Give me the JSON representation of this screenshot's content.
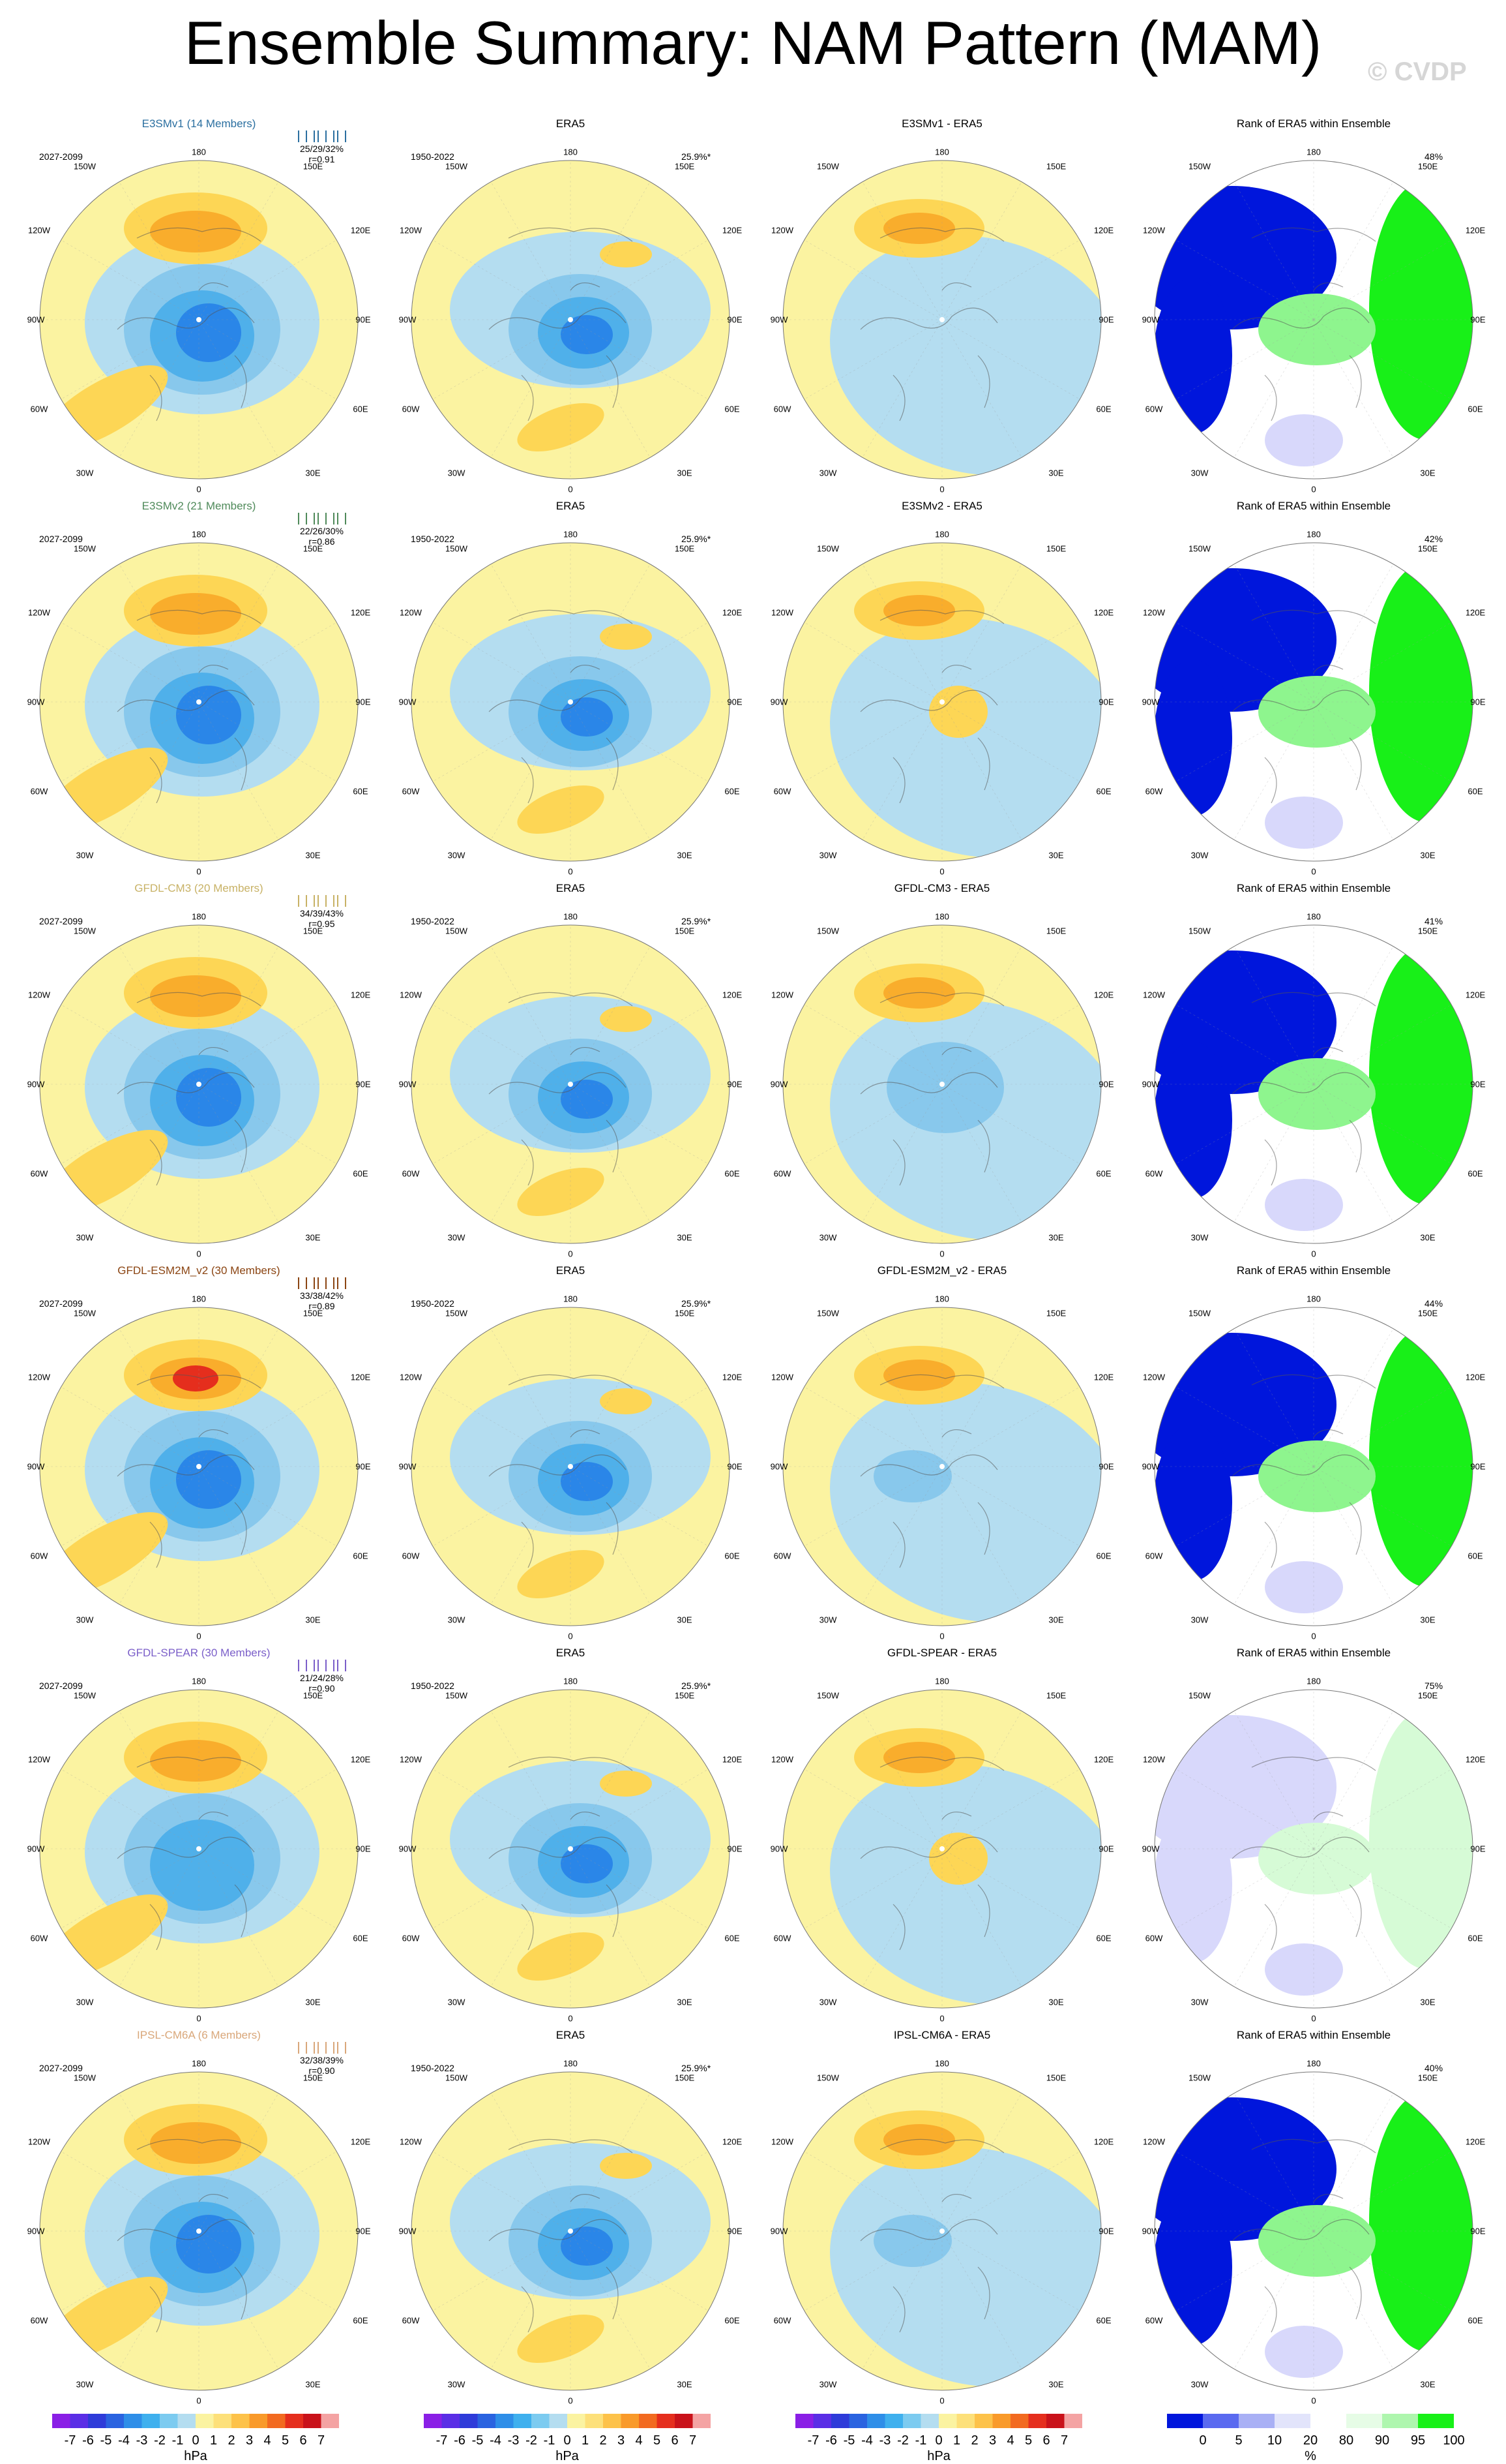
{
  "title": "Ensemble Summary: NAM Pattern (MAM)",
  "watermark": "© CVDP",
  "map_labels": {
    "top": "180",
    "top_left": "150W",
    "top_right": "150E",
    "upper_left": "120W",
    "upper_right": "120E",
    "left": "90W",
    "right": "90E",
    "lower_left": "60W",
    "lower_right": "60E",
    "bottom_left": "30W",
    "bottom_right": "30E",
    "bottom": "0"
  },
  "colors": {
    "yellow": "#fbf3a1",
    "light_blue": "#b4ddf0",
    "orange1": "#fdd655",
    "orange2": "#f9ad2c",
    "orange3": "#f26a20",
    "red": "#e52e1d",
    "blue1": "#88c8ec",
    "blue2": "#4fb0ea",
    "blue3": "#2a86e8",
    "dark_blue": "#0016dc",
    "pale_blue": "#d8d8fb",
    "pale_green": "#d6fbd6",
    "light_green": "#8ef58e",
    "green": "#18f018"
  },
  "chart_data": [
    {
      "type": "heatmap",
      "row_index": 0,
      "model": "E3SMv1 (14 Members)",
      "model_color": "#2b6fa0",
      "period": "2027-2099",
      "pct_range": "25/29/32%",
      "pattern_corr": "r=0.91",
      "obs_title": "ERA5",
      "obs_period": "1950-2022",
      "obs_pct": "25.9%*",
      "diff_title": "E3SMv1 - ERA5",
      "rank_title": "Rank of ERA5 within Ensemble",
      "rank_pct": "48%"
    },
    {
      "type": "heatmap",
      "row_index": 1,
      "model": "E3SMv2 (21 Members)",
      "model_color": "#4f8a5a",
      "period": "2027-2099",
      "pct_range": "22/26/30%",
      "pattern_corr": "r=0.86",
      "obs_title": "ERA5",
      "obs_period": "1950-2022",
      "obs_pct": "25.9%*",
      "diff_title": "E3SMv2 - ERA5",
      "rank_title": "Rank of ERA5 within Ensemble",
      "rank_pct": "42%"
    },
    {
      "type": "heatmap",
      "row_index": 2,
      "model": "GFDL-CM3 (20 Members)",
      "model_color": "#c8b266",
      "period": "2027-2099",
      "pct_range": "34/39/43%",
      "pattern_corr": "r=0.95",
      "obs_title": "ERA5",
      "obs_period": "1950-2022",
      "obs_pct": "25.9%*",
      "diff_title": "GFDL-CM3 - ERA5",
      "rank_title": "Rank of ERA5 within Ensemble",
      "rank_pct": "41%"
    },
    {
      "type": "heatmap",
      "row_index": 3,
      "model": "GFDL-ESM2M_v2 (30 Members)",
      "model_color": "#8b4513",
      "period": "2027-2099",
      "pct_range": "33/38/42%",
      "pattern_corr": "r=0.89",
      "obs_title": "ERA5",
      "obs_period": "1950-2022",
      "obs_pct": "25.9%*",
      "diff_title": "GFDL-ESM2M_v2 - ERA5",
      "rank_title": "Rank of ERA5 within Ensemble",
      "rank_pct": "44%"
    },
    {
      "type": "heatmap",
      "row_index": 4,
      "model": "GFDL-SPEAR (30 Members)",
      "model_color": "#7b5fc9",
      "period": "2027-2099",
      "pct_range": "21/24/28%",
      "pattern_corr": "r=0.90",
      "obs_title": "ERA5",
      "obs_period": "1950-2022",
      "obs_pct": "25.9%*",
      "diff_title": "GFDL-SPEAR - ERA5",
      "rank_title": "Rank of ERA5 within Ensemble",
      "rank_pct": "75%"
    },
    {
      "type": "heatmap",
      "row_index": 5,
      "model": "IPSL-CM6A (6 Members)",
      "model_color": "#d9a77a",
      "period": "2027-2099",
      "pct_range": "32/38/39%",
      "pattern_corr": "r=0.90",
      "obs_title": "ERA5",
      "obs_period": "1950-2022",
      "obs_pct": "25.9%*",
      "diff_title": "IPSL-CM6A - ERA5",
      "rank_title": "Rank of ERA5 within Ensemble",
      "rank_pct": "40%"
    }
  ],
  "colorbar": {
    "labels": [
      "-7",
      "-6",
      "-5",
      "-4",
      "-3",
      "-2",
      "-1",
      "0",
      "1",
      "2",
      "3",
      "4",
      "5",
      "6",
      "7"
    ],
    "unit": "hPa",
    "swatches": [
      "#8a1fe6",
      "#5a2ee6",
      "#2e3bd9",
      "#2a63e0",
      "#2e8ee8",
      "#3fb0ee",
      "#7ccbf0",
      "#b4ddf0",
      "#fbf3a1",
      "#fde07a",
      "#fdc24a",
      "#f99a2a",
      "#f26a20",
      "#e52e1d",
      "#c9121a",
      "#f4a3a3"
    ]
  },
  "rank_colorbar": {
    "labels": [
      "0",
      "5",
      "10",
      "20",
      "80",
      "90",
      "95",
      "100"
    ],
    "unit": "%",
    "swatches": [
      "#0016dc",
      "#5a6af0",
      "#a9b0f5",
      "#e2e4fb",
      "#ffffff",
      "#e6fce6",
      "#aef6ae",
      "#18f018"
    ]
  }
}
